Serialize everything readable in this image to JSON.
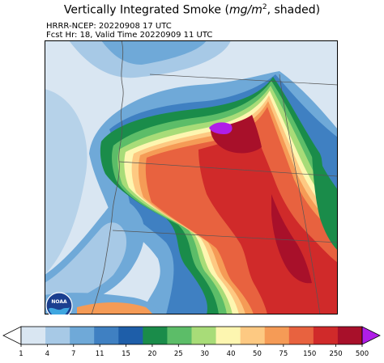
{
  "header": {
    "title_text": "Vertically Integrated Smoke (",
    "title_unit_main": "mg/m",
    "title_unit_sup": "2",
    "title_tail": ", shaded)",
    "model_line": "HRRR-NCEP: 20220908 17 UTC",
    "valid_line": "Fcst Hr: 18, Valid Time 20220909 11 UTC"
  },
  "logo": {
    "icon": "noaa-logo",
    "text": "NOAA"
  },
  "colorbar": {
    "ticks": [
      "1",
      "4",
      "7",
      "11",
      "15",
      "20",
      "25",
      "30",
      "40",
      "50",
      "75",
      "150",
      "250",
      "500"
    ],
    "colors": [
      "#d9e6f2",
      "#a7c9e6",
      "#6fa9d8",
      "#3f80c2",
      "#1e5ea9",
      "#1a8c4a",
      "#5cbd68",
      "#a8dc78",
      "#fdf6b0",
      "#fdc982",
      "#f59b56",
      "#e8623f",
      "#d02a2a",
      "#a8102a"
    ],
    "over_color": "#b01ee8",
    "under_color": "#ffffff"
  }
}
